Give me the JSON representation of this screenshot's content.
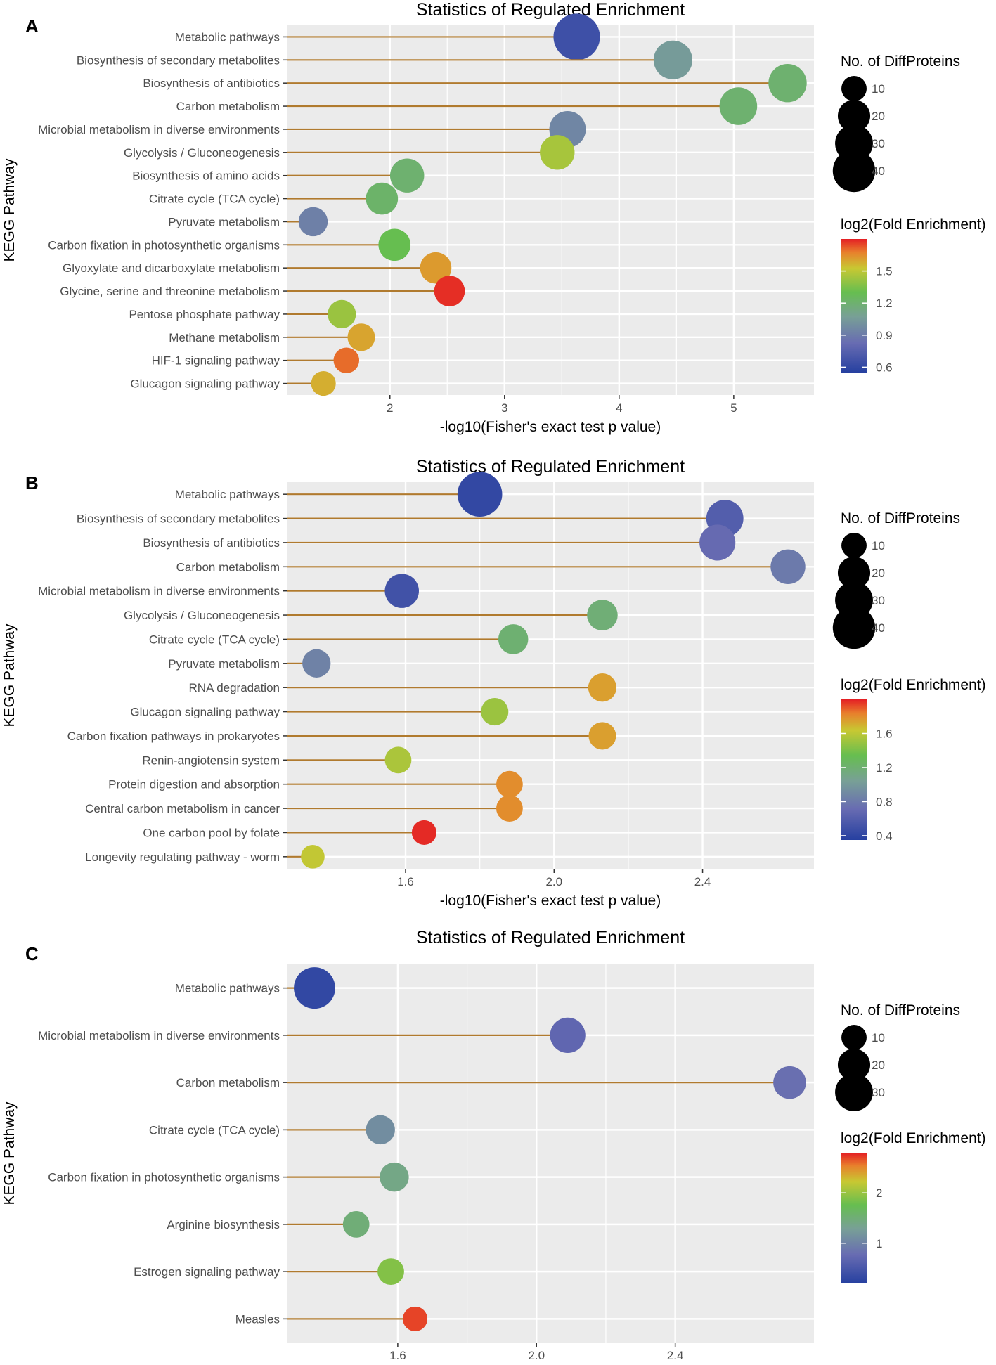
{
  "colors": {
    "stem": "#B07A2E",
    "panel_bg": "#EBEBEB",
    "grid": "#FFFFFF",
    "text": "#4D4D4D"
  },
  "chart_data": [
    {
      "type": "lollipop",
      "panel_label": "A",
      "title": "Statistics of Regulated Enrichment",
      "xlabel": "-log10(Fisher's exact test p value)",
      "ylabel": "KEGG Pathway",
      "xlim": [
        1.1,
        5.7
      ],
      "xticks": [
        2,
        3,
        4,
        5
      ],
      "xtick_labels": [
        "2",
        "3",
        "4",
        "5"
      ],
      "categories": [
        "Metabolic pathways",
        "Biosynthesis of secondary metabolites",
        "Biosynthesis of antibiotics",
        "Carbon metabolism",
        "Microbial metabolism in diverse environments",
        "Glycolysis / Gluconeogenesis",
        "Biosynthesis of amino acids",
        "Citrate cycle (TCA cycle)",
        "Pyruvate metabolism",
        "Carbon fixation in photosynthetic organisms",
        "Glyoxylate and dicarboxylate metabolism",
        "Glycine, serine and threonine metabolism",
        "Pentose phosphate pathway",
        "Methane metabolism",
        "HIF-1 signaling pathway",
        "Glucagon signaling pathway"
      ],
      "x": [
        3.63,
        4.47,
        5.47,
        5.04,
        3.55,
        3.46,
        2.15,
        1.93,
        1.33,
        2.04,
        2.4,
        2.52,
        1.58,
        1.75,
        1.62,
        1.42
      ],
      "counts": [
        44,
        28,
        27,
        26,
        24,
        21,
        20,
        17,
        13,
        17,
        16,
        15,
        12,
        11,
        9,
        8
      ],
      "log2_fold_enrichment": [
        0.65,
        1.05,
        1.2,
        1.2,
        0.95,
        1.45,
        1.2,
        1.22,
        0.92,
        1.3,
        1.62,
        1.78,
        1.42,
        1.6,
        1.7,
        1.58
      ],
      "size_legend": {
        "title": "No. of DiffProteins",
        "values": [
          10,
          20,
          30,
          40
        ],
        "labels": [
          "10",
          "20",
          "30",
          "40"
        ]
      },
      "color_legend": {
        "title": "log2(Fold Enrichment)",
        "range": [
          0.55,
          1.8
        ],
        "ticks": [
          0.6,
          0.9,
          1.2,
          1.5
        ],
        "tick_labels": [
          "0.6",
          "0.9",
          "1.2",
          "1.5"
        ]
      }
    },
    {
      "type": "lollipop",
      "panel_label": "B",
      "title": "Statistics of Regulated Enrichment",
      "xlabel": "-log10(Fisher's exact test p value)",
      "ylabel": "KEGG Pathway",
      "xlim": [
        1.28,
        2.7
      ],
      "xticks": [
        1.6,
        2.0,
        2.4
      ],
      "xtick_labels": [
        "1.6",
        "2.0",
        "2.4"
      ],
      "categories": [
        "Metabolic pathways",
        "Biosynthesis of secondary metabolites",
        "Biosynthesis of antibiotics",
        "Carbon metabolism",
        "Microbial metabolism in diverse environments",
        "Glycolysis / Gluconeogenesis",
        "Citrate cycle (TCA cycle)",
        "Pyruvate metabolism",
        "RNA degradation",
        "Glucagon signaling pathway",
        "Carbon fixation pathways in prokaryotes",
        "Renin-angiotensin system",
        "Protein digestion and absorption",
        "Central carbon metabolism in cancer",
        "One carbon pool by folate",
        "Longevity regulating pathway - worm"
      ],
      "x": [
        1.8,
        2.46,
        2.44,
        2.63,
        1.59,
        2.13,
        1.89,
        1.36,
        2.13,
        1.84,
        2.13,
        1.58,
        1.88,
        1.88,
        1.65,
        1.35
      ],
      "counts": [
        40,
        25,
        23,
        21,
        20,
        15,
        14,
        12,
        12,
        11,
        11,
        10,
        10,
        10,
        8,
        7
      ],
      "log2_fold_enrichment": [
        0.42,
        0.6,
        0.7,
        0.8,
        0.5,
        1.18,
        1.2,
        0.85,
        1.75,
        1.5,
        1.75,
        1.55,
        1.8,
        1.8,
        1.98,
        1.62
      ],
      "size_legend": {
        "title": "No. of DiffProteins",
        "values": [
          10,
          20,
          30,
          40
        ],
        "labels": [
          "10",
          "20",
          "30",
          "40"
        ]
      },
      "color_legend": {
        "title": "log2(Fold Enrichment)",
        "range": [
          0.35,
          2.0
        ],
        "ticks": [
          0.4,
          0.8,
          1.2,
          1.6
        ],
        "tick_labels": [
          "0.4",
          "0.8",
          "1.2",
          "1.6"
        ]
      }
    },
    {
      "type": "lollipop",
      "panel_label": "C",
      "title": "Statistics of Regulated Enrichment",
      "xlabel": "-log10(Fisher's exact test p value)",
      "ylabel": "KEGG Pathway",
      "xlim": [
        1.28,
        2.8
      ],
      "xticks": [
        1.6,
        2.0,
        2.4
      ],
      "xtick_labels": [
        "1.6",
        "2.0",
        "2.4"
      ],
      "categories": [
        "Metabolic pathways",
        "Microbial metabolism in diverse environments",
        "Carbon metabolism",
        "Citrate cycle (TCA cycle)",
        "Carbon fixation in photosynthetic organisms",
        "Arginine biosynthesis",
        "Estrogen signaling pathway",
        "Measles"
      ],
      "x": [
        1.36,
        2.09,
        2.73,
        1.55,
        1.59,
        1.48,
        1.58,
        1.65
      ],
      "counts": [
        33,
        22,
        18,
        13,
        13,
        10,
        10,
        8
      ],
      "log2_fold_enrichment": [
        0.3,
        0.7,
        0.8,
        1.1,
        1.4,
        1.5,
        1.9,
        2.7
      ],
      "size_legend": {
        "title": "No. of DiffProteins",
        "values": [
          10,
          20,
          30
        ],
        "labels": [
          "10",
          "20",
          "30"
        ]
      },
      "color_legend": {
        "title": "log2(Fold Enrichment)",
        "range": [
          0.2,
          2.8
        ],
        "ticks": [
          1,
          2
        ],
        "tick_labels": [
          "1",
          "2"
        ]
      }
    }
  ]
}
